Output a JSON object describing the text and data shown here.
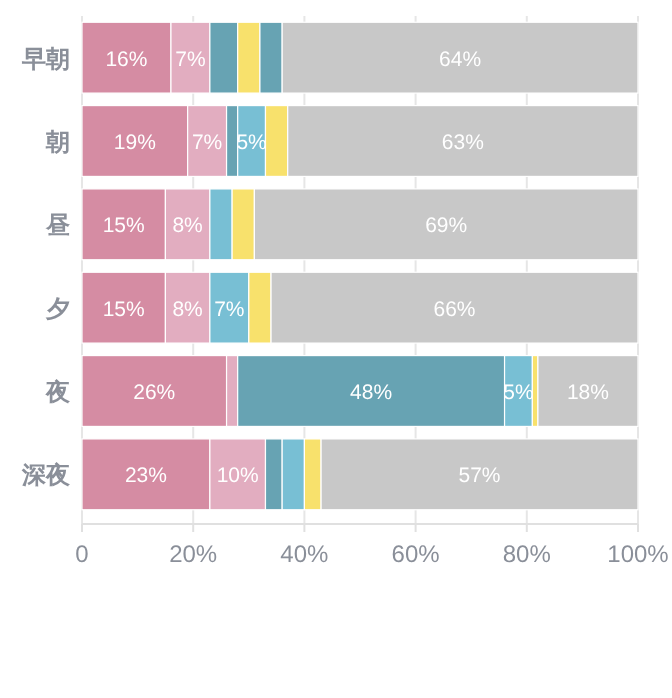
{
  "chart_data": {
    "type": "bar",
    "orientation": "horizontal",
    "stacked": true,
    "categories": [
      "早朝",
      "朝",
      "昼",
      "夕",
      "夜",
      "深夜"
    ],
    "series": [
      {
        "color": "#d58ca3",
        "values": [
          16,
          19,
          15,
          15,
          26,
          23
        ],
        "value_labels": [
          "16%",
          "19%",
          "15%",
          "15%",
          "26%",
          "23%"
        ]
      },
      {
        "color": "#e2adc0",
        "values": [
          7,
          7,
          8,
          8,
          2,
          10
        ],
        "value_labels": [
          "7%",
          "7%",
          "8%",
          "8%",
          null,
          "10%"
        ]
      },
      {
        "color": "#67a3b3",
        "values": [
          5,
          2,
          0,
          0,
          48,
          3
        ],
        "value_labels": [
          null,
          null,
          null,
          null,
          "48%",
          null
        ]
      },
      {
        "colors": [
          "#f8e16c",
          "#78bfd4",
          "#78bfd4",
          "#78bfd4",
          "#78bfd4",
          "#78bfd4"
        ],
        "values": [
          4,
          5,
          4,
          7,
          5,
          4
        ],
        "value_labels": [
          null,
          "5%",
          null,
          "7%",
          "5%",
          null
        ]
      },
      {
        "colors": [
          "#67a3b3",
          "#f8e16c",
          "#f8e16c",
          "#f8e16c",
          "#f8e16c",
          "#f8e16c"
        ],
        "values": [
          4,
          4,
          4,
          4,
          1,
          3
        ],
        "value_labels": [
          null,
          null,
          null,
          null,
          null,
          null
        ]
      },
      {
        "color": "#c8c8c8",
        "values": [
          64,
          63,
          69,
          66,
          18,
          57
        ],
        "value_labels": [
          "64%",
          "63%",
          "69%",
          "66%",
          "18%",
          "57%"
        ]
      }
    ],
    "xlim": [
      0,
      100
    ],
    "xticks": [
      0,
      {
        "value": 20,
        "label": "20%"
      },
      {
        "value": 40,
        "label": "40%"
      },
      {
        "value": 60,
        "label": "60%"
      },
      {
        "value": 80,
        "label": "80%"
      },
      {
        "value": 100,
        "label": "100%"
      }
    ],
    "grid": "x"
  }
}
